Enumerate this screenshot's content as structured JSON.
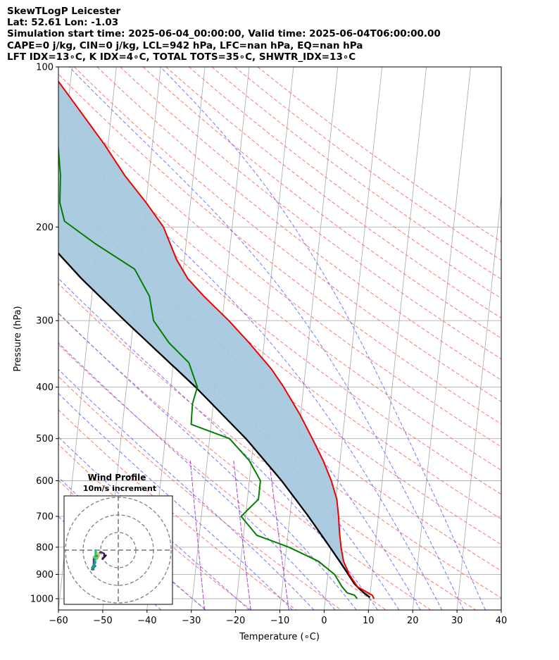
{
  "header": {
    "line1": "SkewTLogP Leicester",
    "line2": "Lat: 52.61   Lon: -1.03",
    "line3": "Simulation start time: 2025-06-04_00:00:00, Valid time: 2025-06-04T06:00:00.00",
    "line4": "CAPE=0 j/kg, CIN=0 j/kg, LCL=942 hPa, LFC=nan hPa, EQ=nan hPa",
    "line5": "LFT IDX=13∘C, K IDX=4∘C, TOTAL TOTS=35∘C, SHWTR_IDX=13∘C"
  },
  "chart_data": {
    "type": "line",
    "subtype": "skew-t log-p",
    "xlabel": "Temperature (∘C)",
    "ylabel": "Pressure (hPa)",
    "xlim": [
      -60,
      40
    ],
    "ylim": [
      1050,
      100
    ],
    "x_ticks": [
      "−60",
      "−50",
      "−40",
      "−30",
      "−20",
      "−10",
      "0",
      "10",
      "20",
      "30",
      "40"
    ],
    "x_tick_values": [
      -60,
      -50,
      -40,
      -30,
      -20,
      -10,
      0,
      10,
      20,
      30,
      40
    ],
    "y_ticks": [
      "100",
      "200",
      "300",
      "400",
      "500",
      "600",
      "700",
      "800",
      "900",
      "1000"
    ],
    "y_tick_values": [
      100,
      200,
      300,
      400,
      500,
      600,
      700,
      800,
      900,
      1000
    ],
    "y_scale": "log",
    "grid": true,
    "colors": {
      "temperature": "#ee0000",
      "dewpoint": "#008000",
      "parcel": "#000000",
      "fill": "#a6c8df",
      "dry_adiabat": "#ff6666",
      "moist_adiabat": "#6666ff",
      "mixing_ratio": "#9933cc",
      "isotherm": "#b0b0b0"
    },
    "temperature_profile": [
      [
        1000,
        11
      ],
      [
        985,
        10.5
      ],
      [
        950,
        7
      ],
      [
        900,
        4.8
      ],
      [
        850,
        3.2
      ],
      [
        800,
        2.3
      ],
      [
        750,
        1.6
      ],
      [
        700,
        1.0
      ],
      [
        650,
        0.2
      ],
      [
        600,
        -1.5
      ],
      [
        550,
        -3.8
      ],
      [
        500,
        -6.8
      ],
      [
        450,
        -10.2
      ],
      [
        400,
        -14.5
      ],
      [
        370,
        -17.7
      ],
      [
        330,
        -23.4
      ],
      [
        300,
        -28.5
      ],
      [
        270,
        -34.7
      ],
      [
        250,
        -38.8
      ],
      [
        230,
        -41.8
      ],
      [
        200,
        -45.5
      ],
      [
        180,
        -50
      ],
      [
        160,
        -55.5
      ],
      [
        140,
        -60.8
      ],
      [
        120,
        -67.5
      ],
      [
        100,
        -75.5
      ]
    ],
    "dewpoint_profile": [
      [
        1000,
        7.2
      ],
      [
        985,
        6.5
      ],
      [
        975,
        4.8
      ],
      [
        950,
        3.5
      ],
      [
        900,
        1.5
      ],
      [
        850,
        -2.5
      ],
      [
        800,
        -9.5
      ],
      [
        760,
        -17
      ],
      [
        700,
        -21
      ],
      [
        650,
        -17.5
      ],
      [
        600,
        -17.5
      ],
      [
        550,
        -20.5
      ],
      [
        500,
        -25.5
      ],
      [
        470,
        -34.5
      ],
      [
        430,
        -34.7
      ],
      [
        400,
        -34
      ],
      [
        360,
        -36.5
      ],
      [
        330,
        -41.5
      ],
      [
        300,
        -45.5
      ],
      [
        270,
        -47
      ],
      [
        240,
        -51
      ],
      [
        215,
        -60.5
      ],
      [
        195,
        -68
      ],
      [
        180,
        -69.5
      ],
      [
        160,
        -70
      ],
      [
        140,
        -71.3
      ],
      [
        100,
        -74.5
      ]
    ],
    "parcel_profile": [
      [
        1000,
        10.5
      ],
      [
        985,
        9.2
      ],
      [
        942,
        6.4
      ],
      [
        900,
        4.6
      ],
      [
        850,
        2.3
      ],
      [
        800,
        -0.2
      ],
      [
        700,
        -5.8
      ],
      [
        600,
        -12.7
      ],
      [
        500,
        -21.8
      ],
      [
        400,
        -34.4
      ],
      [
        300,
        -52
      ],
      [
        250,
        -62.8
      ],
      [
        200,
        -74.7
      ],
      [
        150,
        -88.5
      ],
      [
        100,
        -104.5
      ]
    ],
    "wind_barbs": [
      {
        "p": 1000,
        "u": -7,
        "v": -3
      },
      {
        "p": 980,
        "u": -9,
        "v": -5
      },
      {
        "p": 950,
        "u": -8,
        "v": -4
      },
      {
        "p": 920,
        "u": -8,
        "v": -2
      },
      {
        "p": 890,
        "u": -10,
        "v": -1
      },
      {
        "p": 850,
        "u": -11,
        "v": -2
      },
      {
        "p": 800,
        "u": -14,
        "v": -5
      },
      {
        "p": 750,
        "u": -14,
        "v": -10
      },
      {
        "p": 700,
        "u": -13,
        "v": -9
      },
      {
        "p": 650,
        "u": -15,
        "v": -11
      },
      {
        "p": 600,
        "u": -14,
        "v": -11
      },
      {
        "p": 550,
        "u": -14,
        "v": -11
      },
      {
        "p": 500,
        "u": -14,
        "v": -9
      },
      {
        "p": 450,
        "u": -13,
        "v": -7
      },
      {
        "p": 400,
        "u": -15,
        "v": -10
      },
      {
        "p": 350,
        "u": -14,
        "v": -10
      },
      {
        "p": 320,
        "u": -13,
        "v": -6
      },
      {
        "p": 285,
        "u": -13,
        "v": -0.2
      },
      {
        "p": 250,
        "u": -12,
        "v": -2.5
      },
      {
        "p": 220,
        "u": -14,
        "v": -4
      },
      {
        "p": 190,
        "u": -12,
        "v": -5
      },
      {
        "p": 165,
        "u": -11,
        "v": -3
      },
      {
        "p": 145,
        "u": -12,
        "v": -2
      },
      {
        "p": 125,
        "u": -11,
        "v": -2
      },
      {
        "p": 110,
        "u": -11,
        "v": -3
      }
    ],
    "hodograph": {
      "title": "Wind Profile",
      "subtitle": "10m/s increment",
      "rings_ms": [
        10,
        20,
        30
      ],
      "points": [
        [
          -7,
          -3
        ],
        [
          -9,
          -5
        ],
        [
          -8,
          -4
        ],
        [
          -8,
          -2
        ],
        [
          -10,
          -1
        ],
        [
          -11,
          -2
        ],
        [
          -14,
          -5
        ],
        [
          -14,
          -10
        ],
        [
          -13,
          -9
        ],
        [
          -15,
          -11
        ],
        [
          -14,
          -11
        ],
        [
          -14,
          -11
        ],
        [
          -14,
          -9
        ],
        [
          -13,
          -7
        ],
        [
          -15,
          -10
        ],
        [
          -14,
          -10
        ],
        [
          -13,
          -6
        ],
        [
          -13,
          0
        ],
        [
          -12,
          -2.5
        ],
        [
          -14,
          -4
        ],
        [
          -12,
          -5
        ],
        [
          -11,
          -3
        ],
        [
          -12,
          -2
        ],
        [
          -11,
          -2
        ],
        [
          -11,
          -3
        ]
      ]
    }
  }
}
